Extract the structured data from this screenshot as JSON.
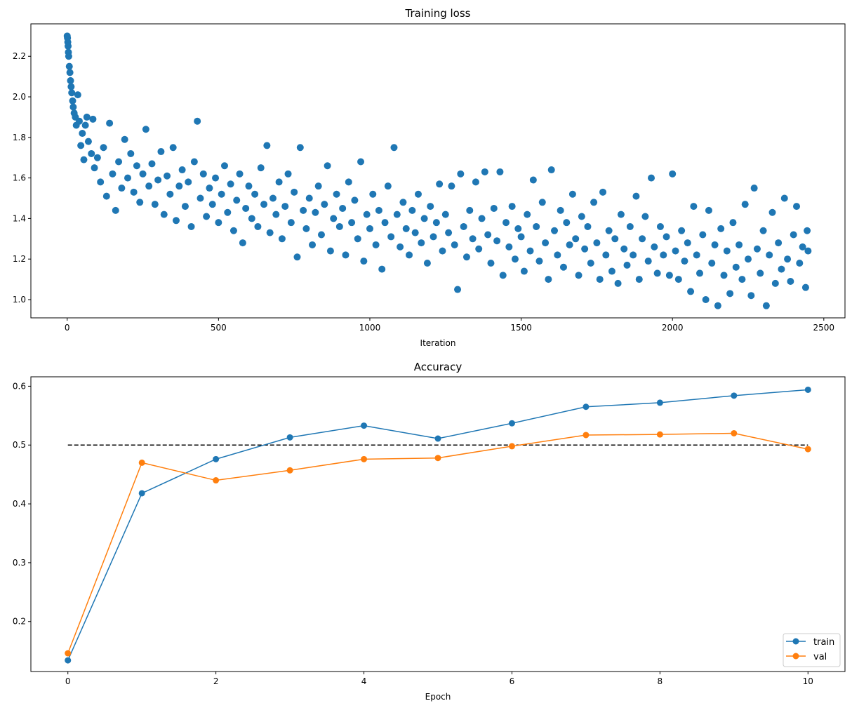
{
  "colors": {
    "train": "#1f77b4",
    "val": "#ff7f0e",
    "reference": "#000000"
  },
  "chart_data": [
    {
      "type": "scatter",
      "title": "Training loss",
      "xlabel": "Iteration",
      "ylabel": "",
      "xlim": [
        -120,
        2570
      ],
      "ylim": [
        0.91,
        2.36
      ],
      "xticks": [
        0,
        500,
        1000,
        1500,
        2000,
        2500
      ],
      "yticks": [
        1.0,
        1.2,
        1.4,
        1.6,
        1.8,
        2.0,
        2.2
      ],
      "ytick_labels": [
        "1.0",
        "1.2",
        "1.4",
        "1.6",
        "1.8",
        "2.0",
        "2.2"
      ],
      "grid": false,
      "points": [
        [
          0,
          2.3
        ],
        [
          1,
          2.29
        ],
        [
          2,
          2.27
        ],
        [
          3,
          2.25
        ],
        [
          4,
          2.22
        ],
        [
          5,
          2.2
        ],
        [
          7,
          2.15
        ],
        [
          9,
          2.12
        ],
        [
          11,
          2.08
        ],
        [
          13,
          2.05
        ],
        [
          15,
          2.02
        ],
        [
          18,
          1.98
        ],
        [
          20,
          1.95
        ],
        [
          23,
          1.92
        ],
        [
          27,
          1.9
        ],
        [
          30,
          1.86
        ],
        [
          35,
          2.01
        ],
        [
          40,
          1.88
        ],
        [
          45,
          1.76
        ],
        [
          50,
          1.82
        ],
        [
          55,
          1.69
        ],
        [
          60,
          1.86
        ],
        [
          65,
          1.9
        ],
        [
          70,
          1.78
        ],
        [
          80,
          1.72
        ],
        [
          85,
          1.89
        ],
        [
          90,
          1.65
        ],
        [
          100,
          1.7
        ],
        [
          110,
          1.58
        ],
        [
          120,
          1.75
        ],
        [
          130,
          1.51
        ],
        [
          140,
          1.87
        ],
        [
          150,
          1.62
        ],
        [
          160,
          1.44
        ],
        [
          170,
          1.68
        ],
        [
          180,
          1.55
        ],
        [
          190,
          1.79
        ],
        [
          200,
          1.6
        ],
        [
          210,
          1.72
        ],
        [
          220,
          1.53
        ],
        [
          230,
          1.66
        ],
        [
          240,
          1.48
        ],
        [
          250,
          1.62
        ],
        [
          260,
          1.84
        ],
        [
          270,
          1.56
        ],
        [
          280,
          1.67
        ],
        [
          290,
          1.47
        ],
        [
          300,
          1.59
        ],
        [
          310,
          1.73
        ],
        [
          320,
          1.42
        ],
        [
          330,
          1.61
        ],
        [
          340,
          1.52
        ],
        [
          350,
          1.75
        ],
        [
          360,
          1.39
        ],
        [
          370,
          1.56
        ],
        [
          380,
          1.64
        ],
        [
          390,
          1.46
        ],
        [
          400,
          1.58
        ],
        [
          410,
          1.36
        ],
        [
          420,
          1.68
        ],
        [
          430,
          1.88
        ],
        [
          440,
          1.5
        ],
        [
          450,
          1.62
        ],
        [
          460,
          1.41
        ],
        [
          470,
          1.55
        ],
        [
          480,
          1.47
        ],
        [
          490,
          1.6
        ],
        [
          500,
          1.38
        ],
        [
          510,
          1.52
        ],
        [
          520,
          1.66
        ],
        [
          530,
          1.43
        ],
        [
          540,
          1.57
        ],
        [
          550,
          1.34
        ],
        [
          560,
          1.49
        ],
        [
          570,
          1.62
        ],
        [
          580,
          1.28
        ],
        [
          590,
          1.45
        ],
        [
          600,
          1.56
        ],
        [
          610,
          1.4
        ],
        [
          620,
          1.52
        ],
        [
          630,
          1.36
        ],
        [
          640,
          1.65
        ],
        [
          650,
          1.47
        ],
        [
          660,
          1.76
        ],
        [
          670,
          1.33
        ],
        [
          680,
          1.5
        ],
        [
          690,
          1.42
        ],
        [
          700,
          1.58
        ],
        [
          710,
          1.3
        ],
        [
          720,
          1.46
        ],
        [
          730,
          1.62
        ],
        [
          740,
          1.38
        ],
        [
          750,
          1.53
        ],
        [
          760,
          1.21
        ],
        [
          770,
          1.75
        ],
        [
          780,
          1.44
        ],
        [
          790,
          1.35
        ],
        [
          800,
          1.5
        ],
        [
          810,
          1.27
        ],
        [
          820,
          1.43
        ],
        [
          830,
          1.56
        ],
        [
          840,
          1.32
        ],
        [
          850,
          1.47
        ],
        [
          860,
          1.66
        ],
        [
          870,
          1.24
        ],
        [
          880,
          1.4
        ],
        [
          890,
          1.52
        ],
        [
          900,
          1.36
        ],
        [
          910,
          1.45
        ],
        [
          920,
          1.22
        ],
        [
          930,
          1.58
        ],
        [
          940,
          1.38
        ],
        [
          950,
          1.49
        ],
        [
          960,
          1.3
        ],
        [
          970,
          1.68
        ],
        [
          980,
          1.19
        ],
        [
          990,
          1.42
        ],
        [
          1000,
          1.35
        ],
        [
          1010,
          1.52
        ],
        [
          1020,
          1.27
        ],
        [
          1030,
          1.44
        ],
        [
          1040,
          1.15
        ],
        [
          1050,
          1.38
        ],
        [
          1060,
          1.56
        ],
        [
          1070,
          1.31
        ],
        [
          1080,
          1.75
        ],
        [
          1090,
          1.42
        ],
        [
          1100,
          1.26
        ],
        [
          1110,
          1.48
        ],
        [
          1120,
          1.35
        ],
        [
          1130,
          1.22
        ],
        [
          1140,
          1.44
        ],
        [
          1150,
          1.33
        ],
        [
          1160,
          1.52
        ],
        [
          1170,
          1.28
        ],
        [
          1180,
          1.4
        ],
        [
          1190,
          1.18
        ],
        [
          1200,
          1.46
        ],
        [
          1210,
          1.31
        ],
        [
          1220,
          1.38
        ],
        [
          1230,
          1.57
        ],
        [
          1240,
          1.24
        ],
        [
          1250,
          1.42
        ],
        [
          1260,
          1.33
        ],
        [
          1270,
          1.56
        ],
        [
          1280,
          1.27
        ],
        [
          1290,
          1.05
        ],
        [
          1300,
          1.62
        ],
        [
          1310,
          1.36
        ],
        [
          1320,
          1.21
        ],
        [
          1330,
          1.44
        ],
        [
          1340,
          1.3
        ],
        [
          1350,
          1.58
        ],
        [
          1360,
          1.25
        ],
        [
          1370,
          1.4
        ],
        [
          1380,
          1.63
        ],
        [
          1390,
          1.32
        ],
        [
          1400,
          1.18
        ],
        [
          1410,
          1.45
        ],
        [
          1420,
          1.29
        ],
        [
          1430,
          1.63
        ],
        [
          1440,
          1.12
        ],
        [
          1450,
          1.38
        ],
        [
          1460,
          1.26
        ],
        [
          1470,
          1.46
        ],
        [
          1480,
          1.2
        ],
        [
          1490,
          1.35
        ],
        [
          1500,
          1.31
        ],
        [
          1510,
          1.14
        ],
        [
          1520,
          1.42
        ],
        [
          1530,
          1.24
        ],
        [
          1540,
          1.59
        ],
        [
          1550,
          1.36
        ],
        [
          1560,
          1.19
        ],
        [
          1570,
          1.48
        ],
        [
          1580,
          1.28
        ],
        [
          1590,
          1.1
        ],
        [
          1600,
          1.64
        ],
        [
          1610,
          1.34
        ],
        [
          1620,
          1.22
        ],
        [
          1630,
          1.44
        ],
        [
          1640,
          1.16
        ],
        [
          1650,
          1.38
        ],
        [
          1660,
          1.27
        ],
        [
          1670,
          1.52
        ],
        [
          1680,
          1.3
        ],
        [
          1690,
          1.12
        ],
        [
          1700,
          1.41
        ],
        [
          1710,
          1.25
        ],
        [
          1720,
          1.36
        ],
        [
          1730,
          1.18
        ],
        [
          1740,
          1.48
        ],
        [
          1750,
          1.28
        ],
        [
          1760,
          1.1
        ],
        [
          1770,
          1.53
        ],
        [
          1780,
          1.22
        ],
        [
          1790,
          1.34
        ],
        [
          1800,
          1.14
        ],
        [
          1810,
          1.3
        ],
        [
          1820,
          1.08
        ],
        [
          1830,
          1.42
        ],
        [
          1840,
          1.25
        ],
        [
          1850,
          1.17
        ],
        [
          1860,
          1.36
        ],
        [
          1870,
          1.22
        ],
        [
          1880,
          1.51
        ],
        [
          1890,
          1.1
        ],
        [
          1900,
          1.3
        ],
        [
          1910,
          1.41
        ],
        [
          1920,
          1.19
        ],
        [
          1930,
          1.6
        ],
        [
          1940,
          1.26
        ],
        [
          1950,
          1.13
        ],
        [
          1960,
          1.36
        ],
        [
          1970,
          1.22
        ],
        [
          1980,
          1.31
        ],
        [
          1990,
          1.12
        ],
        [
          2000,
          1.62
        ],
        [
          2010,
          1.24
        ],
        [
          2020,
          1.1
        ],
        [
          2030,
          1.34
        ],
        [
          2040,
          1.19
        ],
        [
          2050,
          1.28
        ],
        [
          2060,
          1.04
        ],
        [
          2070,
          1.46
        ],
        [
          2080,
          1.22
        ],
        [
          2090,
          1.13
        ],
        [
          2100,
          1.32
        ],
        [
          2110,
          1.0
        ],
        [
          2120,
          1.44
        ],
        [
          2130,
          1.18
        ],
        [
          2140,
          1.27
        ],
        [
          2150,
          0.97
        ],
        [
          2160,
          1.35
        ],
        [
          2170,
          1.12
        ],
        [
          2180,
          1.24
        ],
        [
          2190,
          1.03
        ],
        [
          2200,
          1.38
        ],
        [
          2210,
          1.16
        ],
        [
          2220,
          1.27
        ],
        [
          2230,
          1.1
        ],
        [
          2240,
          1.47
        ],
        [
          2250,
          1.2
        ],
        [
          2260,
          1.02
        ],
        [
          2270,
          1.55
        ],
        [
          2280,
          1.25
        ],
        [
          2290,
          1.13
        ],
        [
          2300,
          1.34
        ],
        [
          2310,
          0.97
        ],
        [
          2320,
          1.22
        ],
        [
          2330,
          1.43
        ],
        [
          2340,
          1.08
        ],
        [
          2350,
          1.28
        ],
        [
          2360,
          1.15
        ],
        [
          2370,
          1.5
        ],
        [
          2380,
          1.2
        ],
        [
          2390,
          1.09
        ],
        [
          2400,
          1.32
        ],
        [
          2410,
          1.46
        ],
        [
          2420,
          1.18
        ],
        [
          2430,
          1.26
        ],
        [
          2440,
          1.06
        ],
        [
          2445,
          1.34
        ],
        [
          2448,
          1.24
        ]
      ]
    },
    {
      "type": "line",
      "title": "Accuracy",
      "xlabel": "Epoch",
      "ylabel": "",
      "xlim": [
        -0.5,
        10.5
      ],
      "ylim": [
        0.115,
        0.616
      ],
      "xticks": [
        0,
        2,
        4,
        6,
        8,
        10
      ],
      "yticks": [
        0.2,
        0.3,
        0.4,
        0.5,
        0.6
      ],
      "ytick_labels": [
        "0.2",
        "0.3",
        "0.4",
        "0.5",
        "0.6"
      ],
      "grid": false,
      "legend_position": "bottom-right",
      "x": [
        0,
        1,
        2,
        3,
        4,
        5,
        6,
        7,
        8,
        9,
        10
      ],
      "series": [
        {
          "name": "train",
          "values": [
            0.134,
            0.418,
            0.476,
            0.513,
            0.533,
            0.511,
            0.537,
            0.565,
            0.572,
            0.584,
            0.594
          ]
        },
        {
          "name": "val",
          "values": [
            0.146,
            0.47,
            0.44,
            0.457,
            0.476,
            0.478,
            0.498,
            0.517,
            0.518,
            0.52,
            0.493
          ]
        }
      ],
      "reference_line": {
        "y": 0.5,
        "style": "dashed"
      }
    }
  ]
}
